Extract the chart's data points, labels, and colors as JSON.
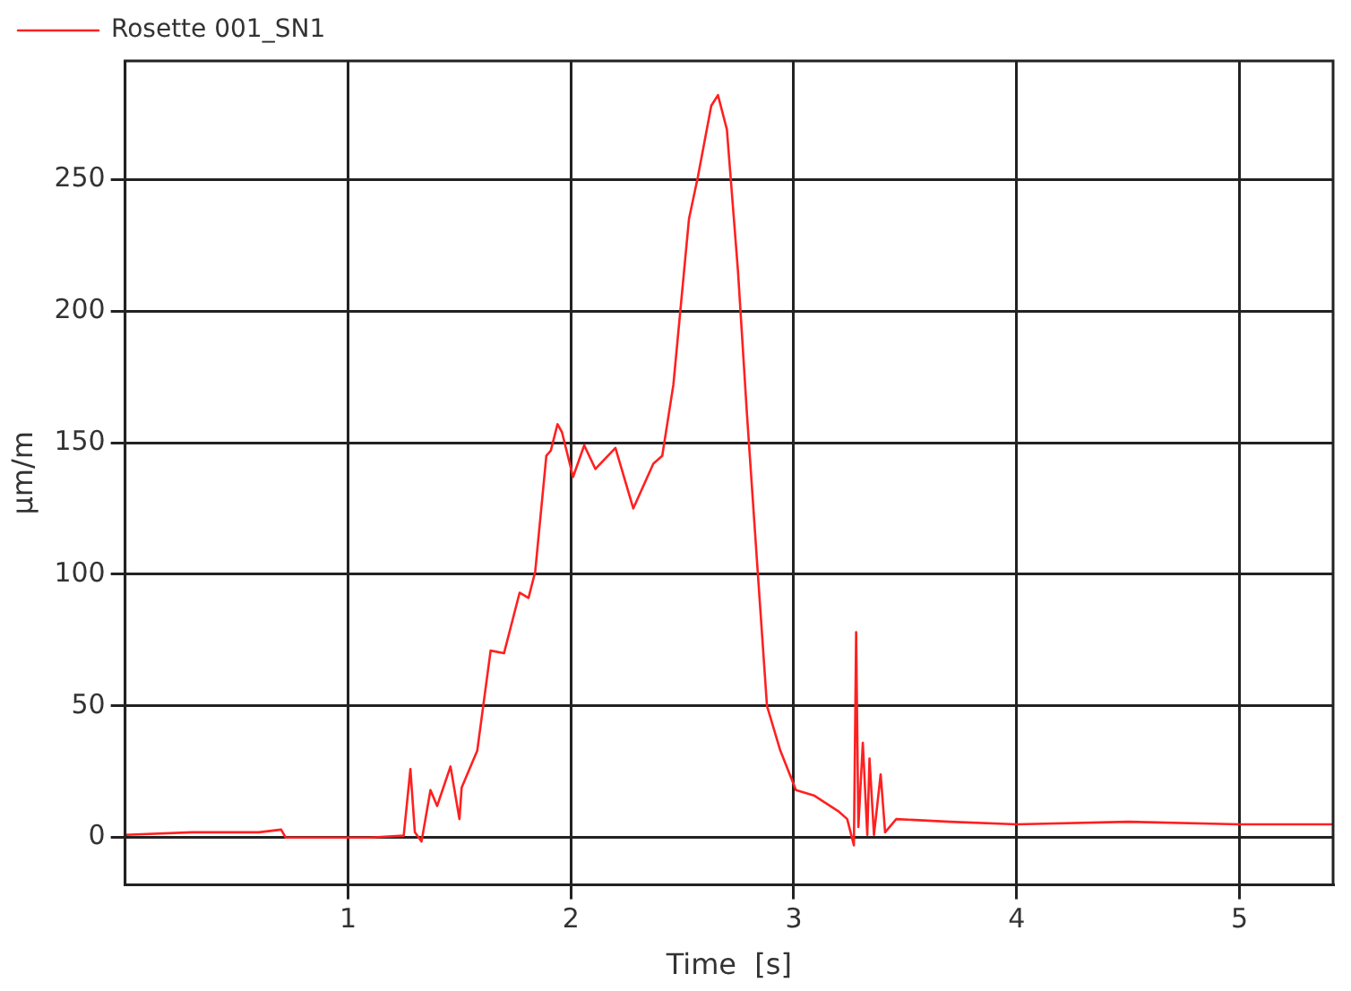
{
  "chart_data": {
    "type": "line",
    "xlabel": "Time  [s]",
    "ylabel": "µm/m",
    "legend": "top left",
    "grid": true,
    "marker": "none",
    "line_style": "solid",
    "xlim": [
      0,
      5.42
    ],
    "ylim": [
      -18,
      295
    ],
    "xticks": [
      1,
      2,
      3,
      4,
      5
    ],
    "yticks": [
      0,
      50,
      100,
      150,
      200,
      250
    ],
    "series": [
      {
        "name": "Rosette 001_SN1",
        "color": "#ff2020",
        "x": [
          0,
          0.3,
          0.6,
          0.7,
          0.72,
          0.84,
          1.1,
          1.25,
          1.28,
          1.3,
          1.33,
          1.37,
          1.4,
          1.46,
          1.5,
          1.51,
          1.58,
          1.64,
          1.7,
          1.77,
          1.81,
          1.84,
          1.89,
          1.91,
          1.94,
          1.96,
          2.01,
          2.06,
          2.11,
          2.2,
          2.28,
          2.37,
          2.41,
          2.46,
          2.53,
          2.57,
          2.63,
          2.66,
          2.7,
          2.75,
          2.79,
          2.84,
          2.88,
          2.94,
          3.01,
          3.09,
          3.2,
          3.24,
          3.27,
          3.28,
          3.29,
          3.31,
          3.33,
          3.34,
          3.36,
          3.39,
          3.41,
          3.46,
          3.7,
          4,
          4.5,
          5,
          5.42
        ],
        "values": [
          1,
          2,
          2,
          3,
          0,
          0,
          0,
          0.7,
          26,
          2,
          -1.5,
          18,
          12,
          27,
          7,
          19,
          33,
          71,
          70,
          93,
          91,
          101,
          145,
          147,
          157,
          154,
          137,
          149,
          140,
          148,
          125,
          142,
          145,
          172,
          235,
          251,
          278,
          282,
          269,
          215,
          161,
          99,
          50,
          33,
          18,
          16,
          10,
          7,
          -3,
          78,
          4,
          36,
          1,
          30,
          1,
          24,
          2,
          7,
          6,
          5,
          6,
          5,
          5
        ]
      }
    ]
  }
}
